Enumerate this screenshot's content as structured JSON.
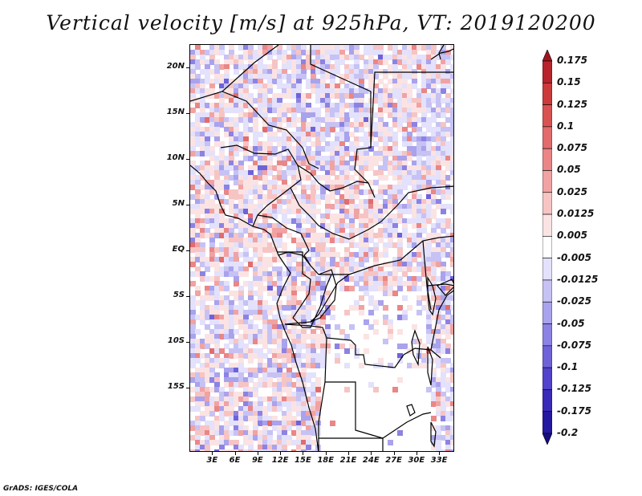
{
  "title": "Vertical velocity [m/s] at 925hPa, VT: 2019120200",
  "credit": "GrADS: IGES/COLA",
  "map": {
    "lat_labels": [
      "20N",
      "15N",
      "10N",
      "5N",
      "EQ",
      "5S",
      "10S",
      "15S"
    ],
    "lat_values": [
      20,
      15,
      10,
      5,
      0,
      -5,
      -10,
      -15
    ],
    "lon_labels": [
      "3E",
      "6E",
      "9E",
      "12E",
      "15E",
      "18E",
      "21E",
      "24E",
      "27E",
      "30E",
      "33E"
    ],
    "lon_values": [
      3,
      6,
      9,
      12,
      15,
      18,
      21,
      24,
      27,
      30,
      33
    ],
    "lon_range": [
      0,
      35
    ],
    "lat_range": [
      -20,
      25
    ]
  },
  "colorbar": {
    "labels": [
      "0.175",
      "0.15",
      "0.125",
      "0.1",
      "0.075",
      "0.05",
      "0.025",
      "0.0125",
      "0.005",
      "-0.005",
      "-0.0125",
      "-0.025",
      "-0.05",
      "-0.075",
      "-0.1",
      "-0.125",
      "-0.175",
      "-0.2"
    ],
    "colors": [
      "#a0151d",
      "#b8242b",
      "#cc3a3a",
      "#d95252",
      "#e26b6b",
      "#ea8686",
      "#f1a2a2",
      "#f7c4c4",
      "#fbe3e3",
      "#ffffff",
      "#e3e1fb",
      "#c6c2f4",
      "#a9a2ec",
      "#8c82e3",
      "#6f62d9",
      "#5242cc",
      "#3a2ab8",
      "#2418a0",
      "#160c80"
    ]
  }
}
